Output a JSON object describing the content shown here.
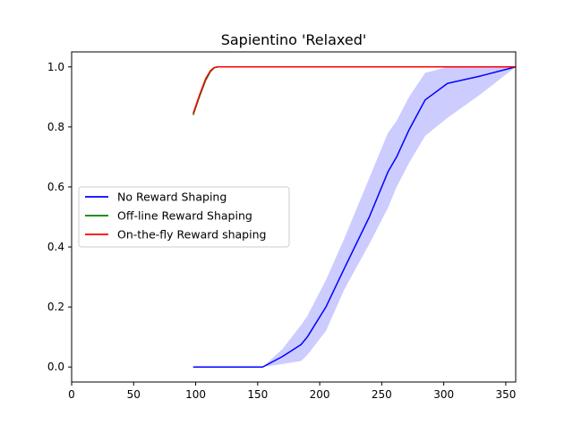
{
  "chart_data": {
    "type": "line",
    "title": "Sapientino 'Relaxed'",
    "xlabel": "",
    "ylabel": "",
    "xlim": [
      0,
      358
    ],
    "ylim": [
      -0.05,
      1.05
    ],
    "x_ticks": [
      0,
      50,
      100,
      150,
      200,
      250,
      300,
      350
    ],
    "y_ticks": [
      0.0,
      0.2,
      0.4,
      0.6,
      0.8,
      1.0
    ],
    "x_tick_labels": [
      "0",
      "50",
      "100",
      "150",
      "200",
      "250",
      "300",
      "350"
    ],
    "y_tick_labels": [
      "0.0",
      "0.2",
      "0.4",
      "0.6",
      "0.8",
      "1.0"
    ],
    "grid": false,
    "legend_position": "center-left",
    "series": [
      {
        "name": "No Reward Shaping",
        "color": "#0000ff",
        "x": [
          98,
          110,
          130,
          154,
          170,
          185,
          190,
          205,
          220,
          240,
          255,
          262,
          272,
          285,
          303,
          330,
          358
        ],
        "y": [
          0.0,
          0.0,
          0.0,
          0.0,
          0.035,
          0.075,
          0.1,
          0.2,
          0.33,
          0.5,
          0.65,
          0.7,
          0.79,
          0.89,
          0.945,
          0.97,
          1.0
        ],
        "band_upper": [
          0.0,
          0.0,
          0.0,
          0.0,
          0.06,
          0.14,
          0.17,
          0.29,
          0.43,
          0.63,
          0.78,
          0.82,
          0.9,
          0.98,
          1.0,
          1.0,
          1.0
        ],
        "band_lower": [
          0.0,
          0.0,
          0.0,
          0.0,
          0.01,
          0.02,
          0.04,
          0.12,
          0.26,
          0.41,
          0.53,
          0.6,
          0.68,
          0.77,
          0.83,
          0.91,
          1.0
        ]
      },
      {
        "name": "Off-line Reward Shaping",
        "color": "#008000",
        "x": [
          98,
          103,
          108,
          112,
          115,
          118,
          125,
          150,
          200,
          250,
          300,
          358
        ],
        "y": [
          0.84,
          0.9,
          0.955,
          0.985,
          0.997,
          1.0,
          1.0,
          1.0,
          1.0,
          1.0,
          1.0,
          1.0
        ]
      },
      {
        "name": "On-the-fly Reward shaping",
        "color": "#ff0000",
        "x": [
          98,
          103,
          108,
          112,
          115,
          118,
          125,
          150,
          200,
          250,
          300,
          358
        ],
        "y": [
          0.845,
          0.905,
          0.96,
          0.988,
          0.998,
          1.0,
          1.0,
          1.0,
          1.0,
          1.0,
          1.0,
          1.0
        ]
      }
    ],
    "band_color": "#ccccff"
  }
}
